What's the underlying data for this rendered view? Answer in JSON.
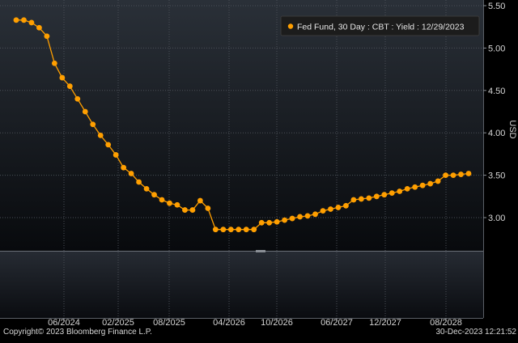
{
  "footer": {
    "copyright": "Copyright© 2023 Bloomberg Finance L.P.",
    "timestamp": "30-Dec-2023 12:21:52"
  },
  "colors": {
    "series": "#ff9f00",
    "legend_bg": "#1c1c1c",
    "grid": "#4a4f57",
    "plot_bg_top": "#2a3038",
    "plot_bg_bottom": "#080a0d"
  },
  "chart_data": {
    "type": "line",
    "ylabel": "USD",
    "ylim": [
      2.4,
      5.5
    ],
    "grid": true,
    "legend_position": "top-right",
    "y_ticks": [
      "5.50",
      "5.00",
      "4.50",
      "4.00",
      "3.50",
      "3.00"
    ],
    "x_ticks": [
      "06/2024",
      "02/2025",
      "08/2025",
      "04/2026",
      "10/2026",
      "06/2027",
      "12/2027",
      "08/2028"
    ],
    "series": [
      {
        "name": "Fed Fund, 30 Day : CBT : Yield : 12/29/2023",
        "marker": "circle",
        "values": [
          5.33,
          5.33,
          5.3,
          5.24,
          5.14,
          4.82,
          4.65,
          4.55,
          4.4,
          4.25,
          4.1,
          3.97,
          3.86,
          3.74,
          3.59,
          3.52,
          3.42,
          3.34,
          3.27,
          3.21,
          3.17,
          3.15,
          3.09,
          3.09,
          3.2,
          3.11,
          2.86,
          2.86,
          2.86,
          2.86,
          2.86,
          2.86,
          2.94,
          2.94,
          2.95,
          2.97,
          2.99,
          3.01,
          3.02,
          3.04,
          3.08,
          3.1,
          3.12,
          3.14,
          3.21,
          3.22,
          3.23,
          3.25,
          3.27,
          3.29,
          3.31,
          3.34,
          3.36,
          3.38,
          3.4,
          3.43,
          3.5,
          3.5,
          3.51,
          3.52
        ]
      }
    ]
  }
}
